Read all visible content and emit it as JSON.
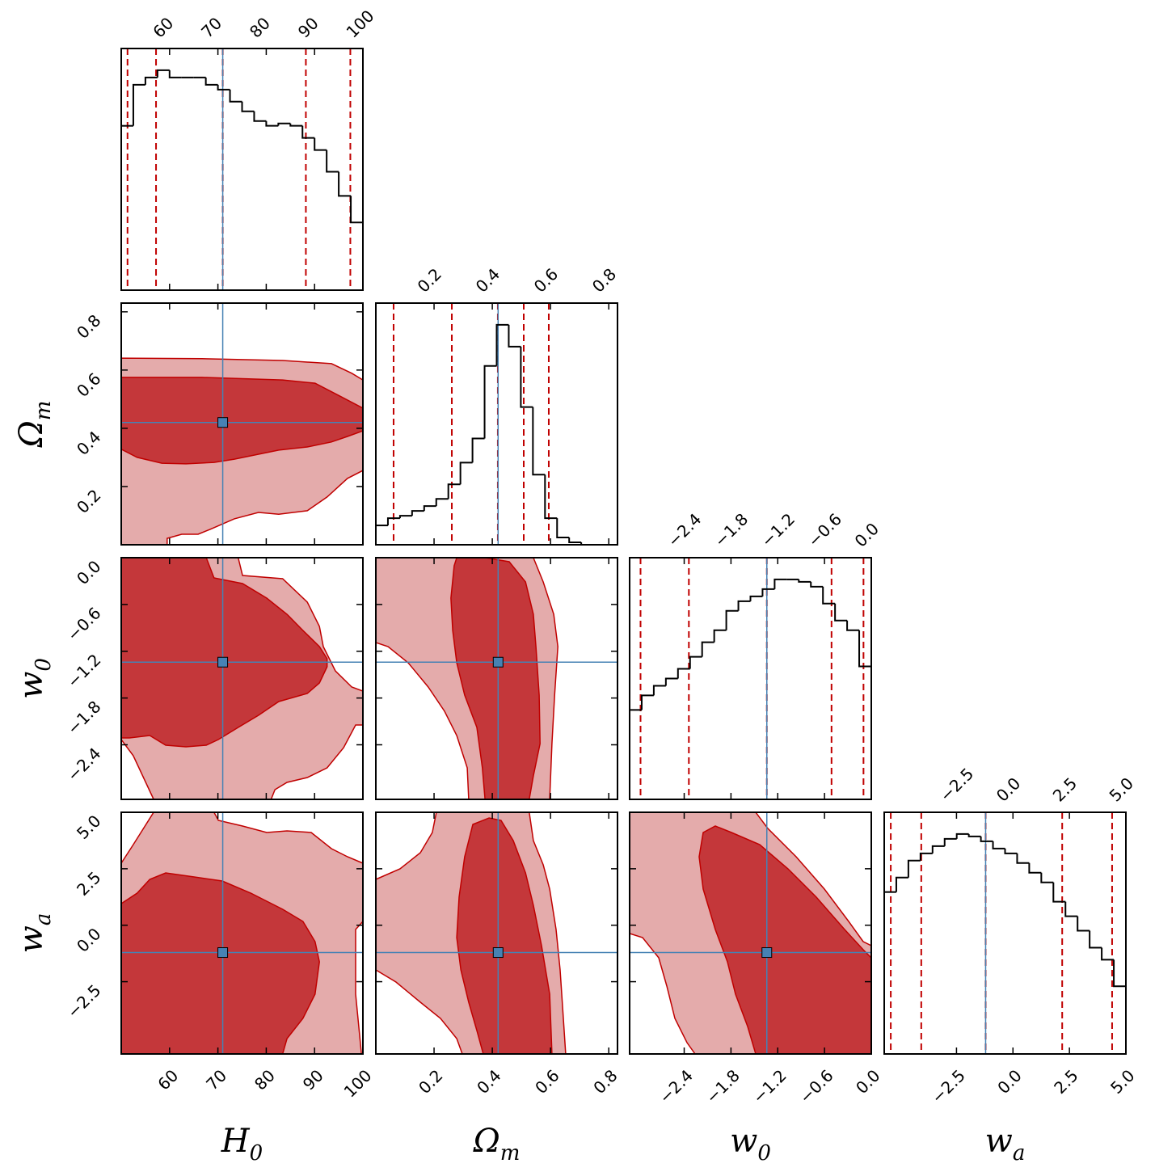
{
  "chart_data": {
    "type": "corner",
    "parameters": [
      {
        "label": "H",
        "sub": "0",
        "lim": [
          50,
          100
        ],
        "ticks": [
          60,
          70,
          80,
          90,
          100
        ]
      },
      {
        "label": "Ω",
        "sub": "m",
        "lim": [
          0,
          0.83
        ],
        "ticks": [
          0.2,
          0.4,
          0.6,
          0.8
        ]
      },
      {
        "label": "w",
        "sub": "0",
        "lim": [
          -3.1,
          0
        ],
        "ticks": [
          {
            "value": -2.4,
            "label": "−2.4"
          },
          {
            "value": -1.8,
            "label": "−1.8"
          },
          {
            "value": -1.2,
            "label": "−1.2"
          },
          {
            "value": -0.6,
            "label": "−0.6"
          },
          {
            "value": 0,
            "label": "0.0"
          }
        ]
      },
      {
        "label": "w",
        "sub": "a",
        "lim": [
          -5.7,
          5
        ],
        "ticks": [
          {
            "value": -2.5,
            "label": "−2.5"
          },
          {
            "value": 0,
            "label": "0.0"
          },
          2.5,
          {
            "value": 5,
            "label": "5.0"
          }
        ]
      }
    ],
    "truths": [
      71.0,
      0.42,
      -1.34,
      -1.21
    ],
    "truth_color": "#4682b4",
    "hist_ylim": [
      0,
      1
    ],
    "hist_color": "#000000",
    "quantile_color": "#c00000",
    "histograms": [
      {
        "bins": [
          50,
          52.5,
          55,
          57.5,
          60,
          62.5,
          65,
          67.5,
          70,
          72.5,
          75,
          77.5,
          80,
          82.5,
          85,
          87.5,
          90,
          92.5,
          95,
          97.5,
          100
        ],
        "counts": [
          0.68,
          0.85,
          0.88,
          0.91,
          0.88,
          0.88,
          0.88,
          0.85,
          0.83,
          0.78,
          0.74,
          0.7,
          0.68,
          0.69,
          0.68,
          0.63,
          0.58,
          0.49,
          0.39,
          0.28
        ],
        "quantiles": [
          51.3,
          57.2,
          71.0,
          88.2,
          97.4
        ]
      },
      {
        "bins": [
          0,
          0.0415,
          0.083,
          0.1245,
          0.166,
          0.2075,
          0.249,
          0.2905,
          0.332,
          0.3735,
          0.415,
          0.4565,
          0.498,
          0.5395,
          0.581,
          0.6225,
          0.664,
          0.7055,
          0.747,
          0.7885,
          0.83
        ],
        "counts": [
          0.08,
          0.11,
          0.12,
          0.14,
          0.16,
          0.19,
          0.25,
          0.34,
          0.44,
          0.74,
          0.91,
          0.82,
          0.57,
          0.29,
          0.11,
          0.03,
          0.01,
          0.0,
          0.0,
          0.0
        ],
        "quantiles": [
          0.061,
          0.261,
          0.419,
          0.508,
          0.594
        ]
      },
      {
        "bins": [
          -3.1,
          -2.945,
          -2.79,
          -2.635,
          -2.48,
          -2.325,
          -2.17,
          -2.015,
          -1.86,
          -1.705,
          -1.55,
          -1.395,
          -1.24,
          -1.085,
          -0.93,
          -0.775,
          -0.62,
          -0.465,
          -0.31,
          -0.155,
          0
        ],
        "counts": [
          0.37,
          0.43,
          0.47,
          0.5,
          0.54,
          0.59,
          0.65,
          0.7,
          0.78,
          0.82,
          0.84,
          0.87,
          0.91,
          0.91,
          0.9,
          0.88,
          0.81,
          0.74,
          0.7,
          0.55
        ],
        "quantiles": [
          -2.96,
          -2.34,
          -1.34,
          -0.51,
          -0.1
        ]
      },
      {
        "bins": [
          -5.7,
          -5.165,
          -4.63,
          -4.095,
          -3.56,
          -3.025,
          -2.49,
          -1.955,
          -1.42,
          -0.885,
          -0.35,
          0.185,
          0.72,
          1.255,
          1.79,
          2.325,
          2.86,
          3.395,
          3.93,
          4.465,
          5
        ],
        "counts": [
          0.67,
          0.73,
          0.8,
          0.83,
          0.86,
          0.89,
          0.91,
          0.9,
          0.88,
          0.85,
          0.83,
          0.79,
          0.75,
          0.71,
          0.63,
          0.57,
          0.51,
          0.44,
          0.39,
          0.28
        ],
        "quantiles": [
          -5.41,
          -4.06,
          -1.21,
          2.18,
          4.39
        ]
      }
    ],
    "contour_fills": [
      "#e4abab",
      "#c4373a"
    ],
    "contour_edge": "#c00000",
    "contours": [
      {
        "levels": [
          {
            "x": [
              50,
              66.7,
              83.4,
              93.5,
              97.7,
              100,
              100,
              96.8,
              92.6,
              88.5,
              82.6,
              78.4,
              73.4,
              68.4,
              65.9,
              62.5,
              59.5,
              59.5,
              50
            ],
            "y": [
              0.641,
              0.639,
              0.633,
              0.622,
              0.589,
              0.566,
              0.255,
              0.228,
              0.164,
              0.117,
              0.105,
              0.111,
              0.089,
              0.053,
              0.036,
              0.036,
              0.022,
              0.0,
              0.0
            ]
          },
          {
            "x": [
              50,
              66.7,
              83.4,
              90.1,
              95.2,
              100,
              100,
              96.8,
              93.5,
              88.5,
              82.6,
              78.4,
              73.4,
              69.2,
              63.4,
              58.4,
              53.3,
              50
            ],
            "y": [
              0.575,
              0.575,
              0.566,
              0.555,
              0.511,
              0.469,
              0.391,
              0.372,
              0.353,
              0.336,
              0.325,
              0.311,
              0.294,
              0.283,
              0.278,
              0.28,
              0.3,
              0.328
            ]
          }
        ]
      },
      {
        "levels": [
          {
            "x": [
              50,
              74.2,
              75.1,
              83.4,
              88.5,
              91.0,
              91.8,
              94.3,
              97.7,
              100,
              100,
              98.5,
              96.0,
              92.6,
              88.5,
              84.3,
              81.8,
              81.0,
              56.7,
              52.5,
              50
            ],
            "y": [
              0,
              0,
              -0.228,
              -0.27,
              -0.57,
              -0.881,
              -1.14,
              -1.452,
              -1.659,
              -1.711,
              -2.146,
              -2.146,
              -2.437,
              -2.696,
              -2.82,
              -2.882,
              -2.976,
              -3.1,
              -3.1,
              -2.54,
              -2.333
            ]
          },
          {
            "x": [
              50,
              67.6,
              69.2,
              75.1,
              80.1,
              84.3,
              87.6,
              91.0,
              92.6,
              92.6,
              91.0,
              88.5,
              82.6,
              78.4,
              74.2,
              70.1,
              67.6,
              63.4,
              59.2,
              55.9,
              51.7,
              50
            ],
            "y": [
              0,
              0,
              -0.259,
              -0.332,
              -0.518,
              -0.726,
              -0.933,
              -1.14,
              -1.296,
              -1.4,
              -1.607,
              -1.742,
              -1.846,
              -2.022,
              -2.177,
              -2.333,
              -2.405,
              -2.426,
              -2.405,
              -2.281,
              -2.312,
              -2.312
            ]
          }
        ]
      },
      {
        "levels": [
          {
            "x": [
              0,
              0.042,
              0.111,
              0.18,
              0.236,
              0.278,
              0.314,
              0.319,
              0.597,
              0.605,
              0.614,
              0.625,
              0.611,
              0.575,
              0.541,
              0
            ],
            "y": [
              -1.089,
              -1.14,
              -1.348,
              -1.659,
              -1.97,
              -2.281,
              -2.696,
              -3.1,
              -3.1,
              -2.385,
              -1.763,
              -1.14,
              -0.726,
              -0.311,
              0,
              0
            ]
          },
          {
            "x": [
              0.278,
              0.375,
              0.458,
              0.514,
              0.541,
              0.55,
              0.561,
              0.564,
              0.541,
              0.527,
              0.375,
              0.366,
              0.347,
              0.305,
              0.278,
              0.264,
              0.258,
              0.269
            ],
            "y": [
              0,
              0,
              -0.052,
              -0.311,
              -0.726,
              -1.14,
              -1.763,
              -2.385,
              -2.799,
              -3.1,
              -3.1,
              -2.696,
              -2.177,
              -1.763,
              -1.348,
              -0.933,
              -0.518,
              -0.104
            ]
          }
        ]
      },
      {
        "levels": [
          {
            "x": [
              50,
              52.5,
              56.7,
              69.2,
              70.1,
              75.1,
              80.1,
              84.3,
              89.3,
              93.5,
              96.8,
              100,
              100,
              98.5,
              98.5,
              99.7,
              50
            ],
            "y": [
              2.745,
              3.568,
              5.0,
              5.0,
              4.642,
              4.392,
              4.105,
              4.177,
              4.105,
              3.389,
              3.032,
              2.745,
              0.168,
              -0.19,
              -3.053,
              -5.7,
              -5.7
            ]
          },
          {
            "x": [
              50,
              53.3,
              55.9,
              59.2,
              65.1,
              70.9,
              76.8,
              83.4,
              87.6,
              90.1,
              91.0,
              90.1,
              87.6,
              84.3,
              83.4,
              50
            ],
            "y": [
              0.956,
              1.421,
              2.029,
              2.316,
              2.137,
              1.958,
              1.421,
              0.705,
              0.168,
              -0.727,
              -1.621,
              -3.053,
              -4.127,
              -5.021,
              -5.7,
              -5.7
            ]
          }
        ]
      },
      {
        "levels": [
          {
            "x": [
              0,
              0.083,
              0.153,
              0.194,
              0.208,
              0.527,
              0.541,
              0.575,
              0.597,
              0.619,
              0.633,
              0.644,
              0.652,
              0.297,
              0.278,
              0.222,
              0.153,
              0.069,
              0
            ],
            "y": [
              2.029,
              2.495,
              3.21,
              4.105,
              5.0,
              5.0,
              3.747,
              2.674,
              1.6,
              -0.19,
              -1.979,
              -4.127,
              -5.7,
              -5.7,
              -5.021,
              -4.127,
              -3.411,
              -2.516,
              -1.979
            ]
          },
          {
            "x": [
              0.333,
              0.389,
              0.43,
              0.472,
              0.514,
              0.541,
              0.569,
              0.597,
              0.605,
              0.369,
              0.347,
              0.319,
              0.292,
              0.278,
              0.286,
              0.305
            ],
            "y": [
              4.463,
              4.749,
              4.642,
              3.747,
              2.316,
              0.884,
              -0.906,
              -3.053,
              -5.7,
              -5.7,
              -4.664,
              -3.411,
              -1.979,
              -0.548,
              1.242,
              3.032
            ]
          }
        ]
      },
      {
        "levels": [
          {
            "x": [
              -3.1,
              -1.483,
              -1.327,
              -0.964,
              -0.601,
              -0.29,
              -0.104,
              0,
              0,
              -2.26,
              -2.364,
              -2.519,
              -2.623,
              -2.727,
              -2.934,
              -3.1
            ],
            "y": [
              5.0,
              5.0,
              4.284,
              3.032,
              1.6,
              0.168,
              -0.727,
              -0.906,
              -5.7,
              -5.7,
              -5.2,
              -4.127,
              -2.695,
              -1.442,
              -0.548,
              -0.369
            ]
          },
          {
            "x": [
              -2.157,
              -2.001,
              -1.794,
              -1.431,
              -1.068,
              -0.705,
              -0.342,
              -0.104,
              0,
              0,
              -1.483,
              -1.586,
              -1.742,
              -1.845,
              -2.001,
              -2.157,
              -2.208
            ],
            "y": [
              4.105,
              4.392,
              4.105,
              3.568,
              2.495,
              1.242,
              -0.19,
              -1.084,
              -1.442,
              -5.7,
              -5.7,
              -4.485,
              -3.053,
              -1.621,
              -0.19,
              1.6,
              3.032
            ]
          }
        ]
      }
    ]
  }
}
